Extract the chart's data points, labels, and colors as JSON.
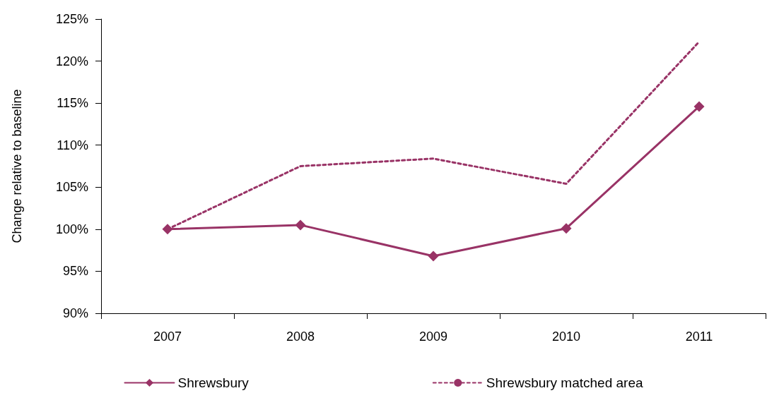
{
  "chart_data": {
    "type": "line",
    "ylabel": "Change relative to baseline",
    "categories": [
      "2007",
      "2008",
      "2009",
      "2010",
      "2011"
    ],
    "series": [
      {
        "name": "Shrewsbury",
        "color": "#993366",
        "values": [
          100,
          100.5,
          96.8,
          100.1,
          114.6
        ],
        "marker": "diamond",
        "line_style": "solid"
      },
      {
        "name": "Shrewsbury matched area",
        "color": "#993366",
        "values": [
          100,
          107.5,
          108.4,
          105.4,
          122.3
        ],
        "marker": "none",
        "line_style": "dashed"
      }
    ],
    "ylim": [
      90,
      125
    ],
    "yticks": [
      {
        "value": 90,
        "label": "90%"
      },
      {
        "value": 95,
        "label": "95%"
      },
      {
        "value": 100,
        "label": "100%"
      },
      {
        "value": 105,
        "label": "105%"
      },
      {
        "value": 110,
        "label": "110%"
      },
      {
        "value": 115,
        "label": "115%"
      },
      {
        "value": 120,
        "label": "120%"
      },
      {
        "value": 125,
        "label": "125%"
      }
    ],
    "grid": false,
    "legend": "bottom"
  }
}
